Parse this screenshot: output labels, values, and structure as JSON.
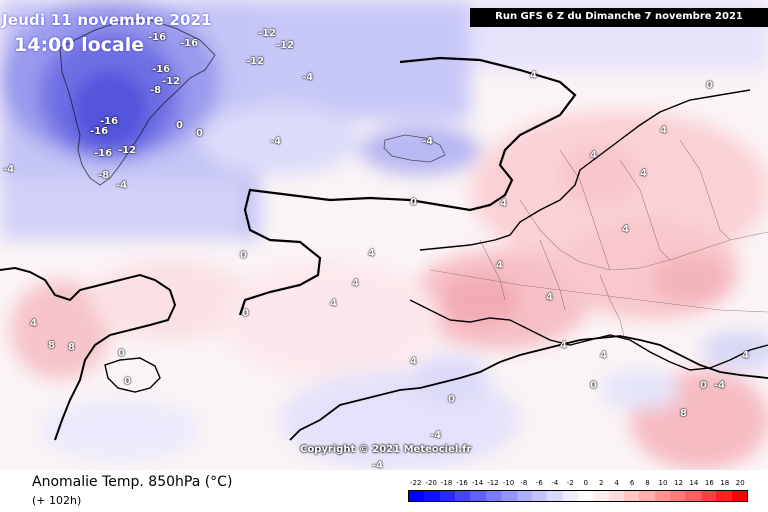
{
  "header": {
    "date": "Jeudi 11 novembre 2021",
    "time": "14:00 locale",
    "run": "Run GFS 6 Z du Dimanche 7 novembre 2021"
  },
  "copyright": "Copyright © 2021 Meteociel.fr",
  "footer": {
    "variable": "Anomalie Temp. 850hPa (°C)",
    "lead": "(+ 102h)"
  },
  "legend": {
    "ticks": [
      "-22",
      "-20",
      "-18",
      "-16",
      "-14",
      "-12",
      "-10",
      "-8",
      "-6",
      "-4",
      "-2",
      "0",
      "2",
      "4",
      "6",
      "8",
      "10",
      "12",
      "14",
      "16",
      "18",
      "20"
    ],
    "colors": [
      "#0000ff",
      "#1010ff",
      "#2a2aff",
      "#4646ff",
      "#6060ff",
      "#7a7aff",
      "#9494ff",
      "#aeaeff",
      "#c4c4ff",
      "#dadaff",
      "#eeeeff",
      "#ffffff",
      "#ffeeee",
      "#ffdada",
      "#ffc4c4",
      "#ffaeae",
      "#ff9494",
      "#ff7a7a",
      "#ff6060",
      "#ff4040",
      "#ff2020",
      "#ff0000"
    ]
  },
  "map_labels": [
    {
      "t": "-16"
    },
    {
      "t": "-16"
    },
    {
      "t": "-12"
    },
    {
      "t": "-12"
    },
    {
      "t": "-16"
    },
    {
      "t": "-12"
    },
    {
      "t": "-12"
    },
    {
      "t": "-8"
    },
    {
      "t": "-16"
    },
    {
      "t": "-16"
    },
    {
      "t": "-16"
    },
    {
      "t": "-12"
    },
    {
      "t": "-8"
    },
    {
      "t": "-4"
    },
    {
      "t": "-4"
    },
    {
      "t": "-4"
    },
    {
      "t": "-4"
    },
    {
      "t": "-4"
    },
    {
      "t": "-4"
    },
    {
      "t": "0"
    },
    {
      "t": "0"
    },
    {
      "t": "0"
    },
    {
      "t": "0"
    },
    {
      "t": "0"
    },
    {
      "t": "4"
    },
    {
      "t": "4"
    },
    {
      "t": "4"
    },
    {
      "t": "4"
    },
    {
      "t": "4"
    },
    {
      "t": "4"
    },
    {
      "t": "4"
    },
    {
      "t": "4"
    },
    {
      "t": "8"
    },
    {
      "t": "4"
    },
    {
      "t": "0"
    },
    {
      "t": "0"
    },
    {
      "t": "0"
    },
    {
      "t": "-4"
    },
    {
      "t": "-4"
    },
    {
      "t": "4"
    },
    {
      "t": "4"
    },
    {
      "t": "4"
    },
    {
      "t": "8"
    },
    {
      "t": "8"
    },
    {
      "t": "4"
    },
    {
      "t": "0"
    },
    {
      "t": "4"
    },
    {
      "t": "4"
    },
    {
      "t": "0"
    },
    {
      "t": "4"
    },
    {
      "t": "-4"
    },
    {
      "t": "0"
    }
  ]
}
